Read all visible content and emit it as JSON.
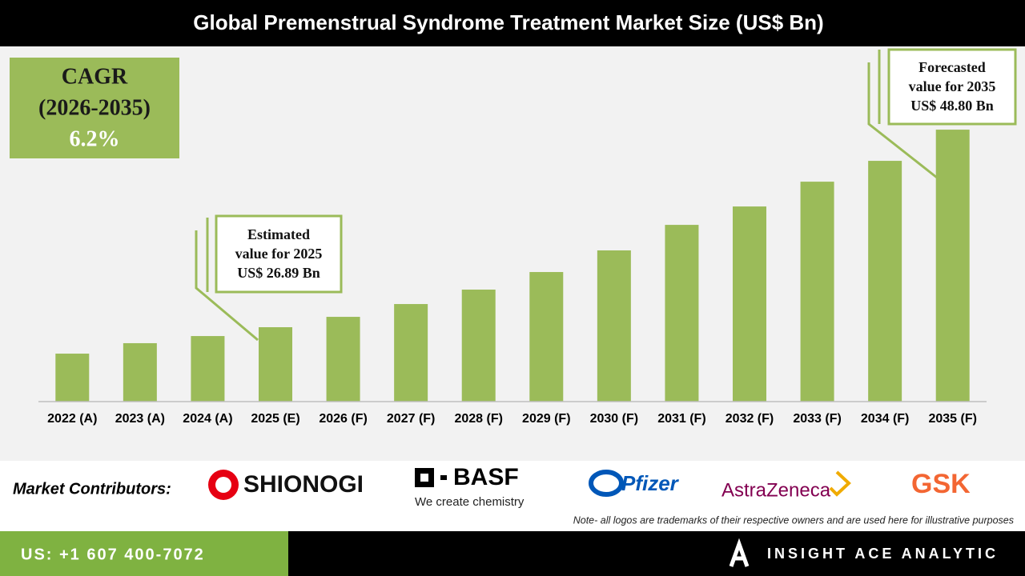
{
  "chart_data": {
    "type": "bar",
    "title": "Global Premenstrual Syndrome Treatment Market Size (US$ Bn)",
    "categories": [
      "2022 (A)",
      "2023 (A)",
      "2024 (A)",
      "2025 (E)",
      "2026 (F)",
      "2027 (F)",
      "2028 (F)",
      "2029 (F)",
      "2030 (F)",
      "2031 (F)",
      "2032 (F)",
      "2033 (F)",
      "2034 (F)",
      "2035 (F)"
    ],
    "values": [
      23.96,
      25.12,
      25.91,
      26.89,
      28.04,
      29.46,
      31.06,
      33.01,
      35.41,
      38.24,
      40.28,
      43.03,
      45.34,
      48.8
    ],
    "color": "#9bbb59",
    "ylim": [
      18.64,
      52.0
    ],
    "annotations": [
      {
        "lines": [
          "Estimated",
          "value for 2025",
          "US$ 26.89 Bn"
        ]
      },
      {
        "lines": [
          "Forecasted",
          "value for 2035",
          "US$ 48.80 Bn"
        ]
      }
    ]
  },
  "cagr_box": {
    "lines": [
      "CAGR",
      "(2026-2035)",
      "6.2%"
    ]
  },
  "contributors": {
    "label": "Market Contributors:",
    "logos": [
      "SHIONOGI",
      "BASF",
      "We create chemistry",
      "Pfizer",
      "AstraZeneca",
      "GSK"
    ],
    "note": "Note- all logos are trademarks of their respective owners and are used here for illustrative purposes"
  },
  "footer": {
    "phone": "US: +1 607 400-7072",
    "brand": "INSIGHT ACE ANALYTIC"
  }
}
